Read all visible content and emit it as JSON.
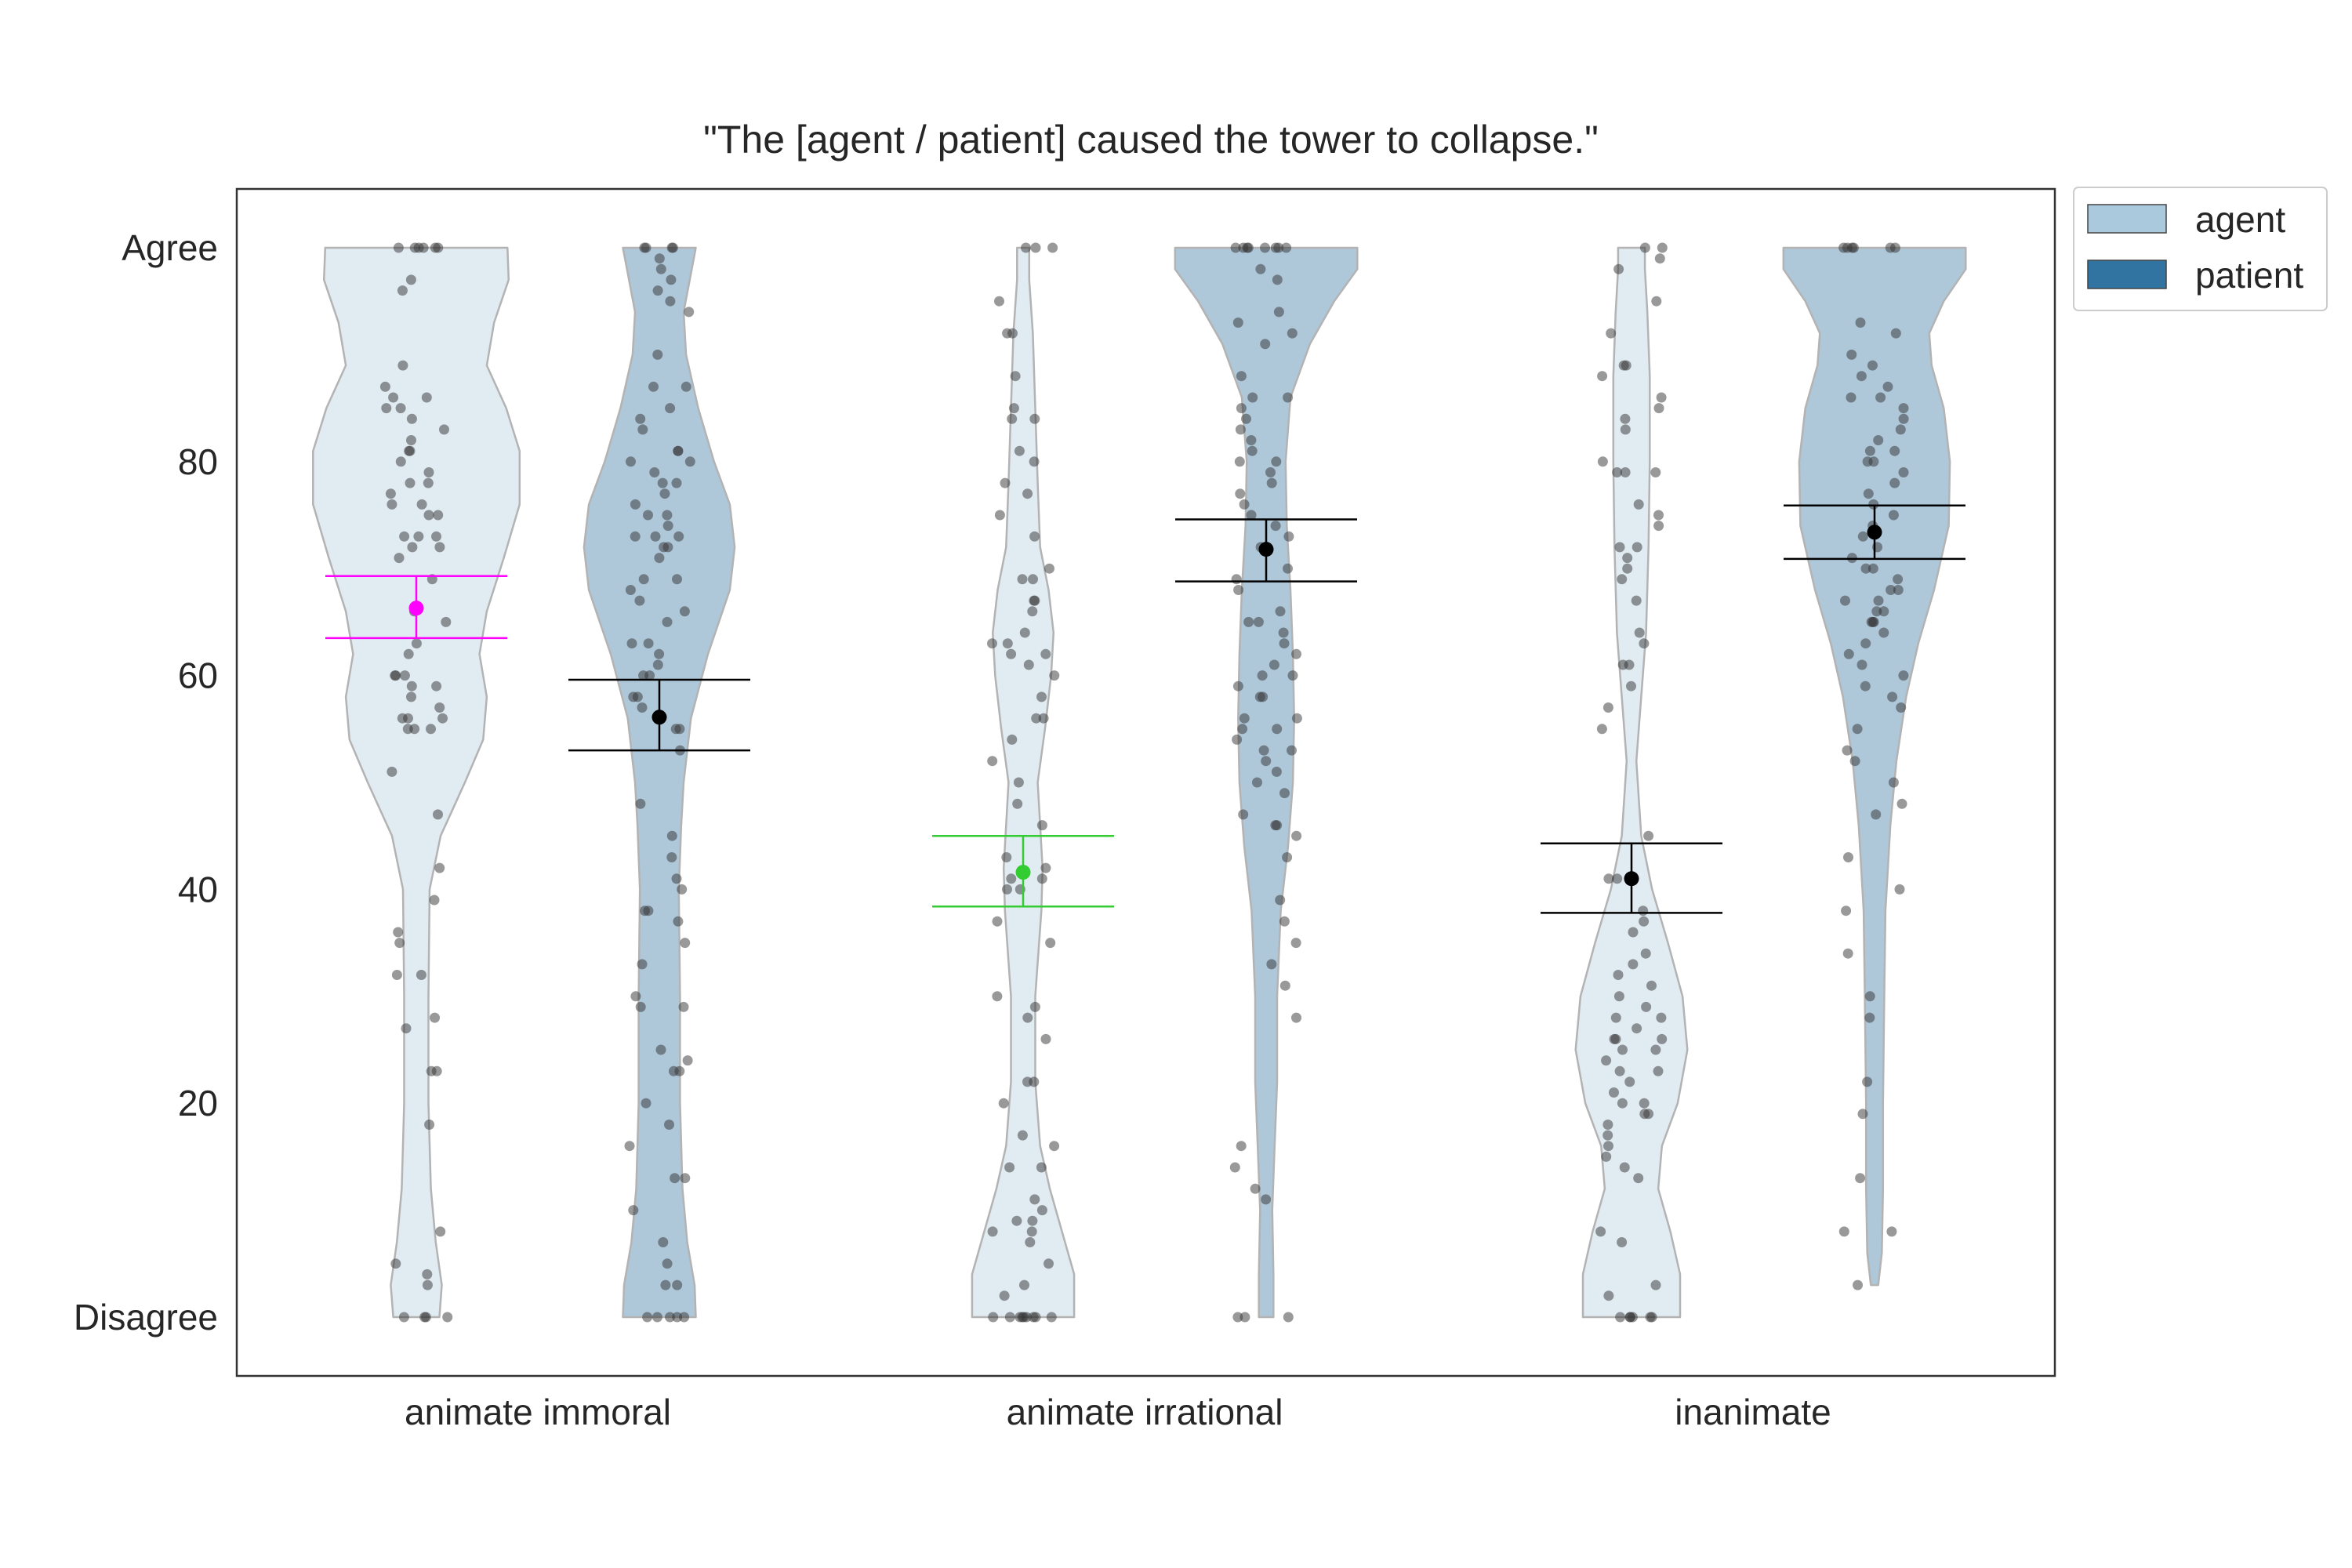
{
  "chart_data": {
    "type": "violin",
    "title": "\"The [agent / patient] caused the tower to collapse.\"",
    "xlabel": "",
    "ylabel": "",
    "categories": [
      "animate immoral",
      "animate irrational",
      "inanimate"
    ],
    "ylim": [
      -5.5,
      105.5
    ],
    "yticks": [
      {
        "value": 0,
        "label": "Disagree"
      },
      {
        "value": 20,
        "label": "20"
      },
      {
        "value": 40,
        "label": "40"
      },
      {
        "value": 60,
        "label": "60"
      },
      {
        "value": 80,
        "label": "80"
      },
      {
        "value": 100,
        "label": "Agree"
      }
    ],
    "grid": false,
    "legend": {
      "placement": "outside top-right",
      "entries": [
        {
          "name": "agent",
          "color": "#abc9dd"
        },
        {
          "name": "patient",
          "color": "#3274a1"
        }
      ]
    },
    "series": [
      {
        "name": "agent",
        "fill_color": "#e1ebf2",
        "groups": [
          {
            "category": "animate immoral",
            "mean": 66.3,
            "ci": [
              63.5,
              69.3
            ],
            "highlight_color": "#ff00ff",
            "density": [
              [
                0,
                0.19
              ],
              [
                3,
                0.21
              ],
              [
                7,
                0.16
              ],
              [
                12,
                0.12
              ],
              [
                20,
                0.1
              ],
              [
                30,
                0.1
              ],
              [
                40,
                0.11
              ],
              [
                45,
                0.2
              ],
              [
                50,
                0.4
              ],
              [
                54,
                0.55
              ],
              [
                58,
                0.58
              ],
              [
                62,
                0.52
              ],
              [
                66,
                0.58
              ],
              [
                71,
                0.72
              ],
              [
                76,
                0.85
              ],
              [
                81,
                0.85
              ],
              [
                85,
                0.74
              ],
              [
                89,
                0.58
              ],
              [
                93,
                0.64
              ],
              [
                97,
                0.76
              ],
              [
                100,
                0.75
              ]
            ],
            "points": [
              0,
              0,
              0,
              0,
              3,
              4,
              5,
              8,
              18,
              23,
              23,
              27,
              28,
              32,
              32,
              35,
              36,
              39,
              42,
              47,
              51,
              55,
              55,
              55,
              56,
              56,
              56,
              57,
              58,
              59,
              59,
              60,
              60,
              60,
              62,
              63,
              65,
              66,
              69,
              71,
              72,
              72,
              73,
              73,
              73,
              75,
              75,
              76,
              76,
              77,
              78,
              78,
              79,
              80,
              81,
              81,
              82,
              83,
              84,
              85,
              85,
              86,
              86,
              87,
              89,
              96,
              97,
              100,
              100,
              100,
              100,
              100,
              100
            ]
          },
          {
            "category": "animate irrational",
            "mean": 41.6,
            "ci": [
              38.4,
              45.0
            ],
            "highlight_color": "#33cc33",
            "density": [
              [
                0,
                0.42
              ],
              [
                4,
                0.42
              ],
              [
                8,
                0.32
              ],
              [
                12,
                0.22
              ],
              [
                16,
                0.14
              ],
              [
                22,
                0.1
              ],
              [
                30,
                0.1
              ],
              [
                38,
                0.15
              ],
              [
                42,
                0.16
              ],
              [
                46,
                0.14
              ],
              [
                50,
                0.12
              ],
              [
                55,
                0.18
              ],
              [
                60,
                0.23
              ],
              [
                64,
                0.25
              ],
              [
                68,
                0.21
              ],
              [
                72,
                0.14
              ],
              [
                78,
                0.12
              ],
              [
                85,
                0.1
              ],
              [
                92,
                0.08
              ],
              [
                97,
                0.05
              ],
              [
                100,
                0.05
              ]
            ],
            "points": [
              0,
              0,
              0,
              0,
              0,
              0,
              0,
              0,
              0,
              2,
              3,
              5,
              7,
              8,
              8,
              9,
              9,
              10,
              11,
              14,
              14,
              16,
              17,
              20,
              22,
              22,
              26,
              28,
              29,
              30,
              35,
              37,
              40,
              40,
              41,
              41,
              42,
              43,
              46,
              48,
              50,
              52,
              54,
              56,
              56,
              58,
              60,
              61,
              62,
              62,
              63,
              63,
              64,
              66,
              67,
              67,
              69,
              69,
              70,
              73,
              75,
              77,
              78,
              80,
              81,
              84,
              84,
              85,
              88,
              92,
              92,
              95,
              100,
              100,
              100
            ]
          },
          {
            "category": "inanimate",
            "mean": 41.0,
            "ci": [
              37.8,
              44.3
            ],
            "highlight_color": "#000000",
            "density": [
              [
                0,
                0.4
              ],
              [
                4,
                0.4
              ],
              [
                8,
                0.32
              ],
              [
                12,
                0.22
              ],
              [
                16,
                0.25
              ],
              [
                20,
                0.38
              ],
              [
                25,
                0.46
              ],
              [
                30,
                0.42
              ],
              [
                35,
                0.3
              ],
              [
                40,
                0.17
              ],
              [
                45,
                0.08
              ],
              [
                52,
                0.04
              ],
              [
                58,
                0.08
              ],
              [
                64,
                0.12
              ],
              [
                72,
                0.14
              ],
              [
                80,
                0.15
              ],
              [
                88,
                0.15
              ],
              [
                94,
                0.13
              ],
              [
                98,
                0.11
              ],
              [
                100,
                0.11
              ]
            ],
            "points": [
              0,
              0,
              0,
              0,
              0,
              0,
              2,
              3,
              7,
              8,
              13,
              14,
              15,
              16,
              17,
              18,
              19,
              19,
              20,
              20,
              21,
              22,
              23,
              23,
              24,
              25,
              25,
              26,
              26,
              26,
              27,
              28,
              28,
              29,
              30,
              31,
              32,
              33,
              34,
              36,
              37,
              38,
              41,
              41,
              45,
              55,
              57,
              59,
              61,
              61,
              63,
              64,
              67,
              69,
              70,
              71,
              72,
              72,
              74,
              75,
              76,
              79,
              79,
              79,
              80,
              83,
              84,
              85,
              86,
              88,
              89,
              89,
              92,
              95,
              98,
              99,
              100,
              100
            ]
          }
        ]
      },
      {
        "name": "patient",
        "fill_color": "#aec7d9",
        "groups": [
          {
            "category": "animate immoral",
            "mean": 56.1,
            "ci": [
              53.0,
              59.6
            ],
            "highlight_color": "#000000",
            "density": [
              [
                0,
                0.3
              ],
              [
                3,
                0.29
              ],
              [
                7,
                0.23
              ],
              [
                12,
                0.19
              ],
              [
                20,
                0.17
              ],
              [
                30,
                0.17
              ],
              [
                40,
                0.16
              ],
              [
                46,
                0.18
              ],
              [
                50,
                0.2
              ],
              [
                56,
                0.26
              ],
              [
                62,
                0.4
              ],
              [
                68,
                0.58
              ],
              [
                72,
                0.62
              ],
              [
                76,
                0.58
              ],
              [
                80,
                0.45
              ],
              [
                85,
                0.32
              ],
              [
                90,
                0.22
              ],
              [
                94,
                0.2
              ],
              [
                97,
                0.25
              ],
              [
                100,
                0.3
              ]
            ],
            "points": [
              0,
              0,
              0,
              0,
              0,
              3,
              3,
              5,
              7,
              10,
              13,
              13,
              16,
              18,
              20,
              23,
              23,
              24,
              25,
              29,
              29,
              30,
              33,
              35,
              37,
              38,
              38,
              40,
              41,
              43,
              45,
              48,
              53,
              55,
              55,
              57,
              58,
              58,
              60,
              60,
              61,
              62,
              63,
              63,
              65,
              66,
              67,
              68,
              69,
              69,
              71,
              72,
              72,
              73,
              73,
              73,
              74,
              75,
              75,
              76,
              77,
              78,
              78,
              79,
              80,
              80,
              81,
              81,
              83,
              84,
              85,
              87,
              87,
              90,
              94,
              95,
              96,
              97,
              98,
              99,
              100,
              100,
              100,
              100
            ]
          },
          {
            "category": "animate irrational",
            "mean": 71.8,
            "ci": [
              68.8,
              74.6
            ],
            "highlight_color": "#000000",
            "density": [
              [
                0,
                0.06
              ],
              [
                4,
                0.06
              ],
              [
                10,
                0.05
              ],
              [
                16,
                0.07
              ],
              [
                22,
                0.09
              ],
              [
                30,
                0.09
              ],
              [
                38,
                0.12
              ],
              [
                44,
                0.18
              ],
              [
                50,
                0.22
              ],
              [
                56,
                0.23
              ],
              [
                62,
                0.22
              ],
              [
                68,
                0.2
              ],
              [
                74,
                0.17
              ],
              [
                80,
                0.16
              ],
              [
                86,
                0.2
              ],
              [
                91,
                0.36
              ],
              [
                95,
                0.56
              ],
              [
                98,
                0.75
              ],
              [
                100,
                0.75
              ]
            ],
            "points": [
              0,
              0,
              0,
              11,
              12,
              14,
              16,
              28,
              31,
              33,
              35,
              37,
              39,
              43,
              45,
              46,
              46,
              47,
              49,
              50,
              51,
              52,
              53,
              53,
              54,
              55,
              55,
              56,
              56,
              58,
              58,
              59,
              60,
              60,
              61,
              62,
              63,
              64,
              65,
              65,
              66,
              68,
              69,
              70,
              72,
              73,
              74,
              75,
              76,
              77,
              78,
              79,
              80,
              80,
              81,
              82,
              83,
              84,
              85,
              86,
              86,
              88,
              91,
              92,
              93,
              94,
              97,
              98,
              100,
              100,
              100,
              100,
              100,
              100,
              100,
              100
            ]
          },
          {
            "category": "inanimate",
            "mean": 73.4,
            "ci": [
              70.9,
              75.9
            ],
            "highlight_color": "#000000",
            "density": [
              [
                3,
                0.03
              ],
              [
                6,
                0.06
              ],
              [
                12,
                0.07
              ],
              [
                20,
                0.07
              ],
              [
                30,
                0.08
              ],
              [
                38,
                0.09
              ],
              [
                46,
                0.13
              ],
              [
                52,
                0.18
              ],
              [
                58,
                0.26
              ],
              [
                63,
                0.36
              ],
              [
                68,
                0.49
              ],
              [
                74,
                0.61
              ],
              [
                80,
                0.62
              ],
              [
                85,
                0.57
              ],
              [
                89,
                0.47
              ],
              [
                92,
                0.45
              ],
              [
                95,
                0.57
              ],
              [
                98,
                0.75
              ],
              [
                100,
                0.75
              ]
            ],
            "points": [
              3,
              8,
              8,
              13,
              19,
              22,
              28,
              30,
              34,
              38,
              40,
              43,
              47,
              48,
              50,
              52,
              53,
              55,
              57,
              58,
              59,
              60,
              61,
              62,
              63,
              64,
              65,
              65,
              65,
              66,
              66,
              67,
              67,
              68,
              68,
              69,
              70,
              70,
              71,
              72,
              73,
              74,
              75,
              76,
              77,
              78,
              79,
              80,
              80,
              81,
              81,
              82,
              83,
              84,
              85,
              86,
              86,
              87,
              88,
              89,
              90,
              92,
              93,
              100,
              100,
              100,
              100,
              100,
              100
            ]
          }
        ]
      }
    ]
  }
}
